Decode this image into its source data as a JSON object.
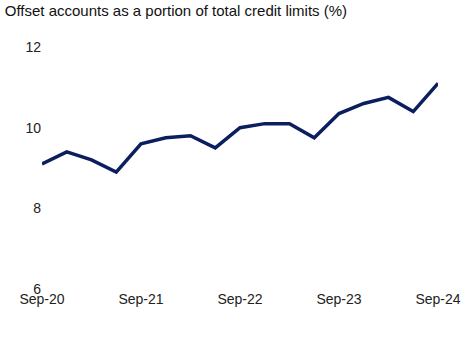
{
  "chart_data": {
    "type": "line",
    "title": "Offset accounts as a portion of total credit limits (%)",
    "categories": [
      "Sep-20",
      null,
      null,
      null,
      "Sep-21",
      null,
      null,
      null,
      "Sep-22",
      null,
      null,
      null,
      "Sep-23",
      null,
      null,
      null,
      "Sep-24"
    ],
    "values": [
      9.1,
      9.4,
      9.2,
      8.9,
      9.6,
      9.75,
      9.8,
      9.5,
      10.0,
      10.1,
      10.1,
      9.75,
      10.35,
      10.6,
      10.75,
      10.4,
      11.1
    ],
    "color": "#0b1f5e",
    "ylim": [
      6,
      12
    ],
    "yticks": [
      6,
      8,
      10,
      12
    ],
    "grid": false
  }
}
